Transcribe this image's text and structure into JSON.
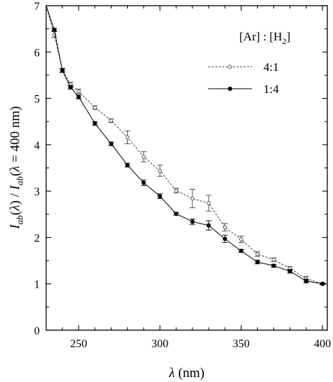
{
  "chart_data": {
    "type": "line",
    "xlabel": "λ (nm)",
    "ylabel": "I_ab(λ) / I_ab(λ = 400 nm)",
    "xlim": [
      230,
      403
    ],
    "ylim": [
      0,
      7
    ],
    "xticks": [
      250,
      300,
      350,
      400
    ],
    "yticks": [
      0,
      1,
      2,
      3,
      4,
      5,
      6,
      7
    ],
    "grid": false,
    "legend": {
      "title": "[Ar] : [H₂]",
      "placement": "top-right"
    },
    "series": [
      {
        "name": "4:1",
        "marker": "open-circle",
        "line": "dotted",
        "color": "#444444",
        "x": [
          230,
          235,
          240,
          245,
          250,
          260,
          270,
          280,
          290,
          300,
          310,
          320,
          330,
          340,
          350,
          360,
          370,
          380,
          390,
          400
        ],
        "y": [
          7.0,
          6.38,
          5.61,
          5.3,
          5.15,
          4.8,
          4.52,
          4.16,
          3.74,
          3.44,
          3.01,
          2.84,
          2.74,
          2.22,
          1.96,
          1.64,
          1.52,
          1.33,
          1.11,
          1.0
        ],
        "err": [
          0,
          0.06,
          0.04,
          0.05,
          0.05,
          0.04,
          0.04,
          0.14,
          0.11,
          0.12,
          0.05,
          0.2,
          0.17,
          0.08,
          0.07,
          0.05,
          0.04,
          0.04,
          0.05,
          0.02
        ]
      },
      {
        "name": "1:4",
        "marker": "filled-circle",
        "line": "solid",
        "color": "#000000",
        "x": [
          230,
          235,
          240,
          245,
          250,
          260,
          270,
          280,
          290,
          300,
          310,
          320,
          330,
          340,
          350,
          360,
          370,
          380,
          390,
          400
        ],
        "y": [
          7.0,
          6.48,
          5.6,
          5.24,
          5.03,
          4.46,
          4.02,
          3.56,
          3.18,
          2.89,
          2.51,
          2.34,
          2.26,
          1.97,
          1.71,
          1.47,
          1.39,
          1.27,
          1.06,
          1.0
        ],
        "err": [
          0,
          0.03,
          0.04,
          0.04,
          0.04,
          0.04,
          0.04,
          0.04,
          0.06,
          0.05,
          0.03,
          0.06,
          0.1,
          0.08,
          0.03,
          0.04,
          0.03,
          0.04,
          0.04,
          0.02
        ]
      }
    ]
  }
}
